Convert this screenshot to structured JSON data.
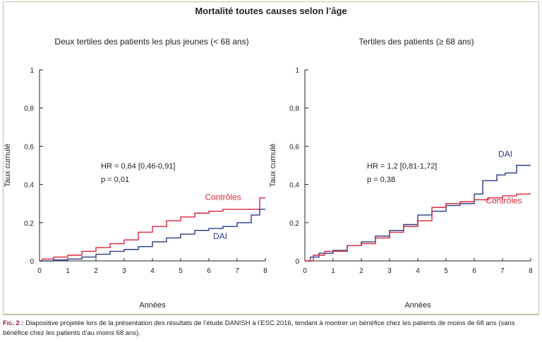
{
  "figure": {
    "title": "Mortalité toutes causes selon l’âge",
    "caption_label": "Fig. 2 :",
    "caption_text": "Diapositive projetée lors de la présentation des résultats de l’étude DANISH à l’ESC 2016, tendant à montrer un bénéfice chez les patients de moins de 68 ans (sans bénéfice chez les patients d’au moins 68 ans)."
  },
  "colors": {
    "controles": "#d8263a",
    "dai": "#2b3a86",
    "axis": "#222222"
  },
  "chart_data": [
    {
      "type": "line",
      "title": "Deux tertiles des patients les plus jeunes (< 68 ans)",
      "xlabel": "Années",
      "ylabel": "Taux cumulé",
      "xlim": [
        0,
        8
      ],
      "ylim": [
        0,
        1
      ],
      "x_ticks": [
        "0",
        "1",
        "2",
        "3",
        "4",
        "5",
        "6",
        "7",
        "8"
      ],
      "y_ticks": [
        "0",
        "0,2",
        "0,4",
        "0,6",
        "0,8",
        "1"
      ],
      "grid": false,
      "annotation_hr": "HR = 0,64 [0,46-0,91]",
      "annotation_p": "p = 0,01",
      "series": [
        {
          "name": "Contrôles",
          "color": "#d8263a",
          "label_at": [
            6.5,
            0.32
          ],
          "points": [
            [
              0,
              0
            ],
            [
              0.1,
              0.01
            ],
            [
              0.5,
              0.02
            ],
            [
              1,
              0.03
            ],
            [
              1.5,
              0.05
            ],
            [
              2,
              0.07
            ],
            [
              2.5,
              0.09
            ],
            [
              3,
              0.11
            ],
            [
              3.5,
              0.15
            ],
            [
              4,
              0.18
            ],
            [
              4.5,
              0.21
            ],
            [
              5,
              0.23
            ],
            [
              5.5,
              0.25
            ],
            [
              6,
              0.26
            ],
            [
              6.5,
              0.27
            ],
            [
              7,
              0.27
            ],
            [
              7.8,
              0.27
            ],
            [
              7.8,
              0.33
            ],
            [
              8,
              0.33
            ]
          ]
        },
        {
          "name": "DAI",
          "color": "#2b3a86",
          "label_at": [
            6.4,
            0.115
          ],
          "points": [
            [
              0,
              0
            ],
            [
              0.5,
              0.005
            ],
            [
              1,
              0.01
            ],
            [
              1.5,
              0.02
            ],
            [
              2,
              0.035
            ],
            [
              2.5,
              0.05
            ],
            [
              3,
              0.06
            ],
            [
              3.5,
              0.075
            ],
            [
              4,
              0.1
            ],
            [
              4.5,
              0.12
            ],
            [
              5,
              0.14
            ],
            [
              5.5,
              0.16
            ],
            [
              6,
              0.17
            ],
            [
              6.5,
              0.18
            ],
            [
              7,
              0.2
            ],
            [
              7.5,
              0.24
            ],
            [
              7.8,
              0.27
            ],
            [
              8,
              0.27
            ]
          ]
        }
      ]
    },
    {
      "type": "line",
      "title": "Tertiles des patients (≥ 68 ans)",
      "xlabel": "Années",
      "ylabel": "Taux cumulé",
      "xlim": [
        0,
        8
      ],
      "ylim": [
        0,
        1
      ],
      "x_ticks": [
        "0",
        "1",
        "2",
        "3",
        "4",
        "5",
        "6",
        "7",
        "8"
      ],
      "y_ticks": [
        "0",
        "0,2",
        "0,4",
        "0,6",
        "0,8",
        "1"
      ],
      "grid": false,
      "annotation_hr": "HR = 1,2 [0,81-1,72]",
      "annotation_p": "p = 0,38",
      "series": [
        {
          "name": "DAI",
          "color": "#2b3a86",
          "label_at": [
            7.1,
            0.545
          ],
          "points": [
            [
              0,
              0
            ],
            [
              0.2,
              0.02
            ],
            [
              0.5,
              0.04
            ],
            [
              1,
              0.055
            ],
            [
              1.5,
              0.08
            ],
            [
              2,
              0.1
            ],
            [
              2.5,
              0.13
            ],
            [
              3,
              0.16
            ],
            [
              3.5,
              0.19
            ],
            [
              4,
              0.24
            ],
            [
              4.5,
              0.26
            ],
            [
              5,
              0.29
            ],
            [
              5.5,
              0.3
            ],
            [
              6,
              0.35
            ],
            [
              6.3,
              0.42
            ],
            [
              6.8,
              0.45
            ],
            [
              7.1,
              0.46
            ],
            [
              7.5,
              0.5
            ],
            [
              8,
              0.5
            ]
          ]
        },
        {
          "name": "Contrôles",
          "color": "#d8263a",
          "label_at": [
            7.05,
            0.3
          ],
          "points": [
            [
              0,
              0
            ],
            [
              0.3,
              0.03
            ],
            [
              0.7,
              0.05
            ],
            [
              1,
              0.05
            ],
            [
              1.5,
              0.08
            ],
            [
              2,
              0.09
            ],
            [
              2.5,
              0.12
            ],
            [
              3,
              0.15
            ],
            [
              3.5,
              0.18
            ],
            [
              4,
              0.21
            ],
            [
              4.5,
              0.28
            ],
            [
              5,
              0.3
            ],
            [
              5.5,
              0.31
            ],
            [
              6,
              0.32
            ],
            [
              6.5,
              0.33
            ],
            [
              7,
              0.34
            ],
            [
              7.5,
              0.35
            ],
            [
              8,
              0.35
            ]
          ]
        }
      ]
    }
  ]
}
